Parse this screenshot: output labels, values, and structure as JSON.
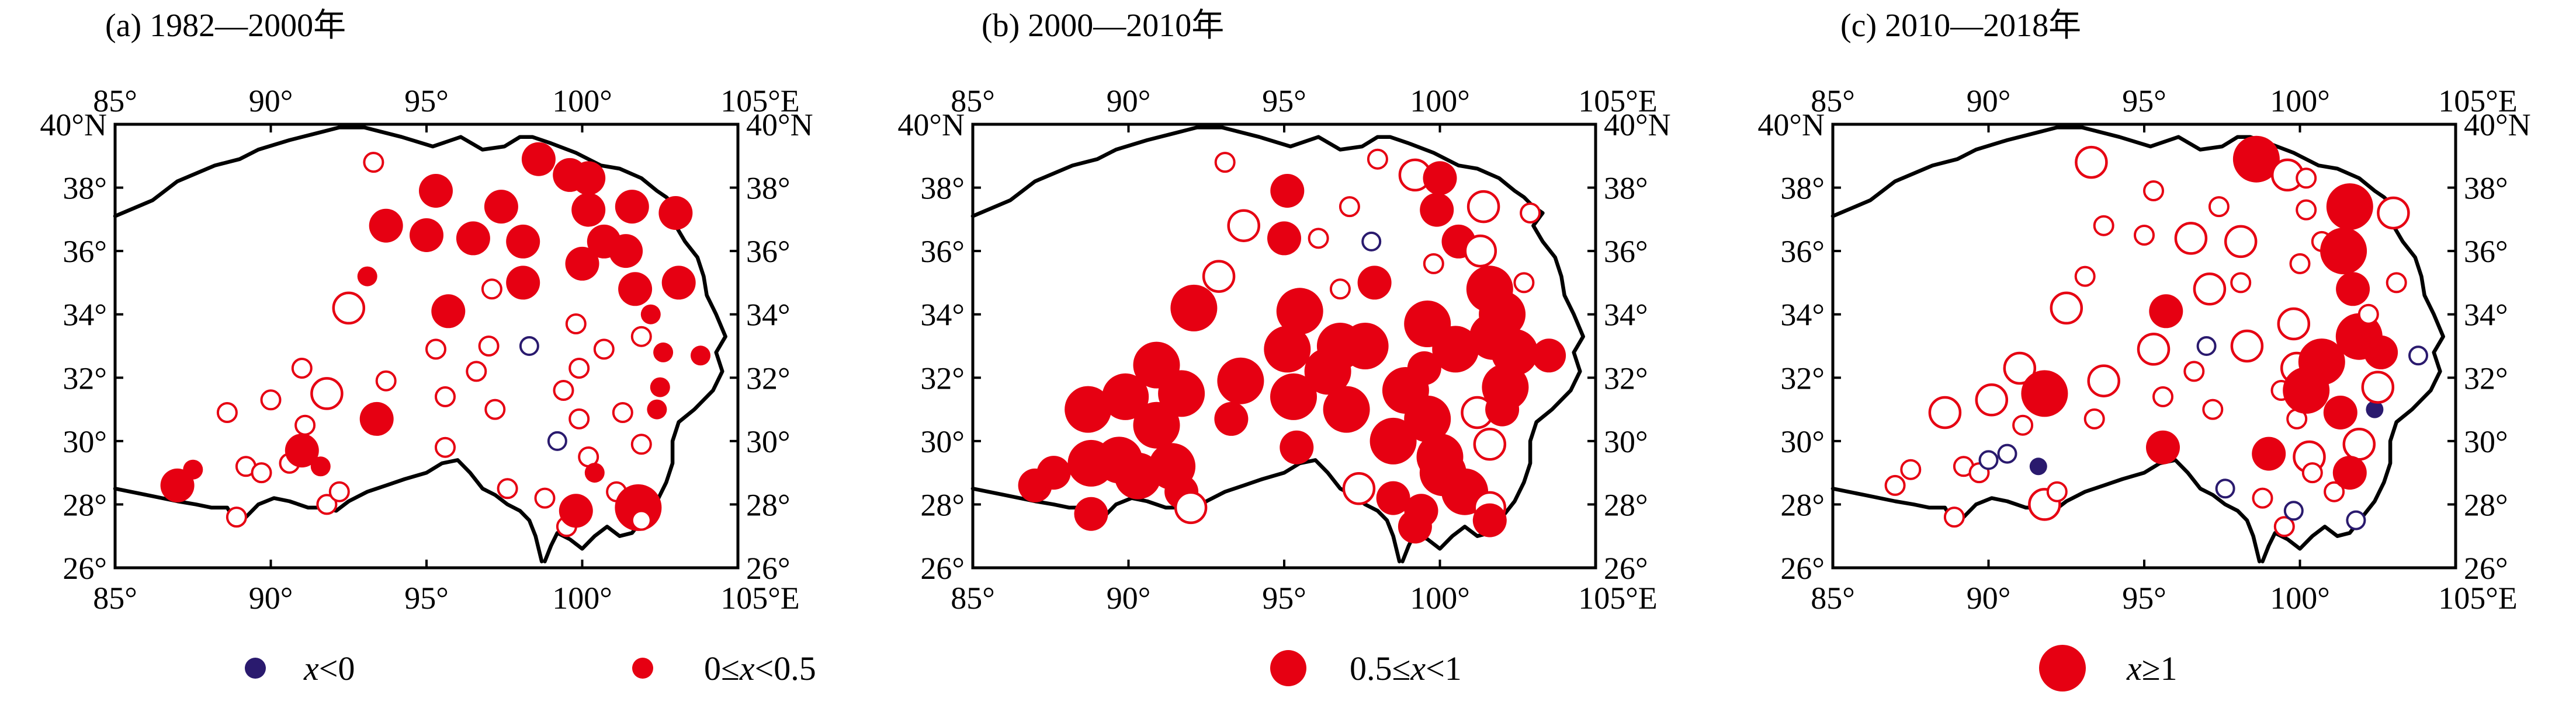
{
  "panels": [
    {
      "title": "(a) 1982—2000年",
      "stations": [
        [
          87.0,
          28.6,
          "m"
        ],
        [
          87.5,
          29.1,
          "s"
        ],
        [
          88.9,
          27.6,
          "so"
        ],
        [
          88.6,
          30.9,
          "so"
        ],
        [
          89.2,
          29.2,
          "so"
        ],
        [
          89.7,
          29.0,
          "so"
        ],
        [
          90.0,
          31.3,
          "so"
        ],
        [
          90.6,
          29.3,
          "so"
        ],
        [
          91.0,
          32.3,
          "so"
        ],
        [
          91.0,
          29.7,
          "m"
        ],
        [
          91.1,
          30.5,
          "so"
        ],
        [
          91.6,
          29.2,
          "s"
        ],
        [
          91.8,
          28.0,
          "so"
        ],
        [
          91.8,
          31.5,
          "mo"
        ],
        [
          92.2,
          28.4,
          "so"
        ],
        [
          92.5,
          34.2,
          "mo"
        ],
        [
          93.1,
          35.2,
          "s"
        ],
        [
          93.4,
          30.7,
          "m"
        ],
        [
          93.7,
          31.9,
          "so"
        ],
        [
          93.3,
          38.8,
          "so"
        ],
        [
          93.7,
          36.8,
          "m"
        ],
        [
          95.0,
          36.5,
          "m"
        ],
        [
          95.3,
          37.9,
          "m"
        ],
        [
          95.3,
          32.9,
          "so"
        ],
        [
          95.6,
          31.4,
          "so"
        ],
        [
          95.6,
          29.8,
          "so"
        ],
        [
          95.7,
          34.1,
          "m"
        ],
        [
          96.5,
          36.4,
          "m"
        ],
        [
          96.6,
          32.2,
          "so"
        ],
        [
          97.0,
          33.0,
          "so"
        ],
        [
          97.1,
          34.8,
          "so"
        ],
        [
          97.2,
          31.0,
          "so"
        ],
        [
          97.4,
          37.4,
          "m"
        ],
        [
          97.6,
          28.5,
          "so"
        ],
        [
          98.1,
          36.3,
          "m"
        ],
        [
          98.1,
          35.0,
          "m"
        ],
        [
          98.3,
          33.0,
          "no"
        ],
        [
          98.6,
          38.9,
          "m"
        ],
        [
          98.8,
          28.2,
          "so"
        ],
        [
          99.2,
          30.0,
          "no"
        ],
        [
          99.4,
          31.6,
          "so"
        ],
        [
          99.5,
          27.3,
          "so"
        ],
        [
          99.6,
          38.4,
          "m"
        ],
        [
          99.8,
          27.8,
          "m"
        ],
        [
          99.8,
          33.7,
          "so"
        ],
        [
          99.9,
          32.3,
          "so"
        ],
        [
          99.9,
          30.7,
          "so"
        ],
        [
          100.0,
          35.6,
          "m"
        ],
        [
          100.2,
          37.3,
          "m"
        ],
        [
          100.2,
          38.3,
          "m"
        ],
        [
          100.2,
          29.5,
          "so"
        ],
        [
          100.4,
          29.0,
          "s"
        ],
        [
          100.7,
          36.3,
          "m"
        ],
        [
          100.7,
          32.9,
          "so"
        ],
        [
          101.1,
          28.4,
          "so"
        ],
        [
          101.3,
          30.9,
          "so"
        ],
        [
          101.4,
          36.0,
          "m"
        ],
        [
          101.6,
          37.4,
          "m"
        ],
        [
          101.7,
          34.8,
          "m"
        ],
        [
          101.8,
          27.9,
          "l"
        ],
        [
          101.9,
          29.9,
          "so"
        ],
        [
          101.9,
          33.3,
          "so"
        ],
        [
          101.9,
          27.5,
          "so"
        ],
        [
          102.2,
          34.0,
          "s"
        ],
        [
          102.4,
          31.0,
          "s"
        ],
        [
          102.5,
          31.7,
          "s"
        ],
        [
          102.6,
          32.8,
          "s"
        ],
        [
          103.0,
          37.2,
          "m"
        ],
        [
          103.1,
          35.0,
          "m"
        ],
        [
          103.8,
          32.7,
          "s"
        ]
      ]
    },
    {
      "title": "(b) 2000—2010年",
      "stations": [
        [
          87.0,
          28.6,
          "m"
        ],
        [
          87.6,
          29.0,
          "m"
        ],
        [
          88.7,
          31.0,
          "l"
        ],
        [
          88.8,
          29.3,
          "l"
        ],
        [
          88.8,
          27.7,
          "m"
        ],
        [
          89.7,
          29.4,
          "l"
        ],
        [
          89.9,
          31.4,
          "l"
        ],
        [
          90.3,
          28.9,
          "l"
        ],
        [
          90.9,
          32.4,
          "l"
        ],
        [
          90.9,
          30.5,
          "l"
        ],
        [
          91.4,
          29.2,
          "l"
        ],
        [
          91.7,
          28.4,
          "m"
        ],
        [
          91.7,
          31.5,
          "l"
        ],
        [
          92.0,
          27.9,
          "mo"
        ],
        [
          92.1,
          34.2,
          "l"
        ],
        [
          92.9,
          35.2,
          "mo"
        ],
        [
          93.1,
          38.8,
          "so"
        ],
        [
          93.3,
          30.7,
          "m"
        ],
        [
          93.6,
          31.9,
          "l"
        ],
        [
          93.7,
          36.8,
          "mo"
        ],
        [
          95.0,
          36.4,
          "m"
        ],
        [
          95.1,
          37.9,
          "m"
        ],
        [
          95.1,
          32.9,
          "l"
        ],
        [
          95.3,
          31.4,
          "l"
        ],
        [
          95.4,
          29.8,
          "m"
        ],
        [
          95.5,
          34.1,
          "l"
        ],
        [
          96.1,
          36.4,
          "so"
        ],
        [
          96.4,
          32.2,
          "l"
        ],
        [
          96.8,
          33.0,
          "l"
        ],
        [
          96.8,
          34.8,
          "so"
        ],
        [
          97.0,
          31.0,
          "l"
        ],
        [
          97.1,
          37.4,
          "so"
        ],
        [
          97.4,
          28.5,
          "mo"
        ],
        [
          97.8,
          36.3,
          "no"
        ],
        [
          97.9,
          35.0,
          "m"
        ],
        [
          97.6,
          33.0,
          "l"
        ],
        [
          98.0,
          38.9,
          "so"
        ],
        [
          98.5,
          28.2,
          "m"
        ],
        [
          98.5,
          30.0,
          "l"
        ],
        [
          98.9,
          31.6,
          "l"
        ],
        [
          99.2,
          27.3,
          "m"
        ],
        [
          99.2,
          38.4,
          "mo"
        ],
        [
          99.4,
          27.8,
          "m"
        ],
        [
          99.6,
          33.7,
          "l"
        ],
        [
          99.5,
          32.3,
          "m"
        ],
        [
          99.6,
          30.7,
          "l"
        ],
        [
          99.8,
          35.6,
          "so"
        ],
        [
          99.9,
          37.3,
          "m"
        ],
        [
          100.0,
          38.3,
          "m"
        ],
        [
          100.0,
          29.5,
          "l"
        ],
        [
          100.1,
          29.0,
          "l"
        ],
        [
          100.6,
          36.3,
          "m"
        ],
        [
          100.5,
          32.9,
          "l"
        ],
        [
          100.8,
          28.4,
          "l"
        ],
        [
          101.2,
          30.9,
          "mo"
        ],
        [
          101.3,
          36.0,
          "mo"
        ],
        [
          101.4,
          37.4,
          "mo"
        ],
        [
          101.6,
          34.8,
          "l"
        ],
        [
          101.6,
          27.9,
          "mo"
        ],
        [
          101.6,
          29.9,
          "mo"
        ],
        [
          101.7,
          33.3,
          "l"
        ],
        [
          101.6,
          27.5,
          "m"
        ],
        [
          102.0,
          34.0,
          "l"
        ],
        [
          102.0,
          31.0,
          "m"
        ],
        [
          102.1,
          31.7,
          "l"
        ],
        [
          102.4,
          32.8,
          "l"
        ],
        [
          102.9,
          37.2,
          "so"
        ],
        [
          102.7,
          35.0,
          "so"
        ],
        [
          103.5,
          32.7,
          "m"
        ]
      ]
    },
    {
      "title": "(c) 2010—2018年",
      "stations": [
        [
          87.0,
          28.6,
          "so"
        ],
        [
          87.5,
          29.1,
          "so"
        ],
        [
          88.9,
          27.6,
          "so"
        ],
        [
          88.6,
          30.9,
          "mo"
        ],
        [
          89.2,
          29.2,
          "so"
        ],
        [
          89.7,
          29.0,
          "so"
        ],
        [
          90.0,
          29.4,
          "no"
        ],
        [
          90.1,
          31.3,
          "mo"
        ],
        [
          90.6,
          29.6,
          "no"
        ],
        [
          91.0,
          32.3,
          "mo"
        ],
        [
          91.1,
          30.5,
          "so"
        ],
        [
          91.6,
          29.2,
          "n"
        ],
        [
          91.8,
          28.0,
          "mo"
        ],
        [
          91.8,
          31.5,
          "l"
        ],
        [
          92.2,
          28.4,
          "so"
        ],
        [
          92.5,
          34.2,
          "mo"
        ],
        [
          93.1,
          35.2,
          "so"
        ],
        [
          93.4,
          30.7,
          "so"
        ],
        [
          93.7,
          31.9,
          "mo"
        ],
        [
          93.3,
          38.8,
          "mo"
        ],
        [
          93.7,
          36.8,
          "so"
        ],
        [
          95.0,
          36.5,
          "so"
        ],
        [
          95.3,
          37.9,
          "so"
        ],
        [
          95.3,
          32.9,
          "mo"
        ],
        [
          95.6,
          31.4,
          "so"
        ],
        [
          95.6,
          29.8,
          "m"
        ],
        [
          95.7,
          34.1,
          "m"
        ],
        [
          96.5,
          36.4,
          "mo"
        ],
        [
          96.6,
          32.2,
          "so"
        ],
        [
          97.0,
          33.0,
          "no"
        ],
        [
          97.1,
          34.8,
          "mo"
        ],
        [
          97.2,
          31.0,
          "so"
        ],
        [
          97.4,
          37.4,
          "so"
        ],
        [
          97.6,
          28.5,
          "no"
        ],
        [
          98.1,
          36.3,
          "mo"
        ],
        [
          98.1,
          35.0,
          "so"
        ],
        [
          98.3,
          33.0,
          "mo"
        ],
        [
          98.6,
          38.9,
          "l"
        ],
        [
          98.8,
          28.2,
          "so"
        ],
        [
          99.0,
          29.6,
          "m"
        ],
        [
          99.4,
          31.6,
          "so"
        ],
        [
          99.5,
          27.3,
          "so"
        ],
        [
          99.6,
          38.4,
          "mo"
        ],
        [
          99.8,
          27.8,
          "no"
        ],
        [
          99.8,
          33.7,
          "mo"
        ],
        [
          99.9,
          32.3,
          "mo"
        ],
        [
          99.9,
          30.7,
          "so"
        ],
        [
          100.0,
          35.6,
          "so"
        ],
        [
          100.2,
          37.3,
          "so"
        ],
        [
          100.2,
          38.3,
          "so"
        ],
        [
          100.3,
          29.5,
          "mo"
        ],
        [
          100.4,
          29.0,
          "so"
        ],
        [
          100.7,
          36.3,
          "so"
        ],
        [
          100.7,
          32.5,
          "l"
        ],
        [
          101.1,
          28.4,
          "so"
        ],
        [
          101.3,
          30.9,
          "m"
        ],
        [
          101.4,
          36.0,
          "l"
        ],
        [
          101.6,
          37.4,
          "l"
        ],
        [
          101.7,
          34.8,
          "m"
        ],
        [
          101.8,
          27.5,
          "no"
        ],
        [
          101.9,
          29.9,
          "mo"
        ],
        [
          101.9,
          33.3,
          "l"
        ],
        [
          102.2,
          34.0,
          "so"
        ],
        [
          102.4,
          31.0,
          "n"
        ],
        [
          102.5,
          31.7,
          "mo"
        ],
        [
          102.6,
          32.8,
          "m"
        ],
        [
          103.0,
          37.2,
          "mo"
        ],
        [
          103.1,
          35.0,
          "so"
        ],
        [
          103.8,
          32.7,
          "no"
        ],
        [
          100.2,
          31.6,
          "l"
        ],
        [
          101.6,
          29.0,
          "m"
        ]
      ]
    }
  ],
  "axes": {
    "lon_ticks": [
      85,
      90,
      95,
      100,
      105
    ],
    "lat_ticks": [
      26,
      28,
      30,
      32,
      34,
      36,
      38,
      40
    ],
    "lon_labels": [
      "85°",
      "90°",
      "95°",
      "100°",
      "105°E"
    ],
    "lat_labels": [
      "26°",
      "28°",
      "30°",
      "32°",
      "34°",
      "36°",
      "38°",
      "40°N"
    ],
    "lon_range": [
      85,
      105
    ],
    "lat_range": [
      26,
      40
    ]
  },
  "legend": {
    "items": [
      {
        "var": "x",
        "rel": "<0"
      },
      {
        "pre": "0≤",
        "var": "x",
        "rel": "<0.5"
      },
      {
        "pre": "0.5≤",
        "var": "x",
        "rel": "<1"
      },
      {
        "var": "x",
        "rel": "≥1"
      }
    ]
  },
  "colors": {
    "positive": "#e60012",
    "negative": "#2a1a6e",
    "border": "#000000"
  }
}
